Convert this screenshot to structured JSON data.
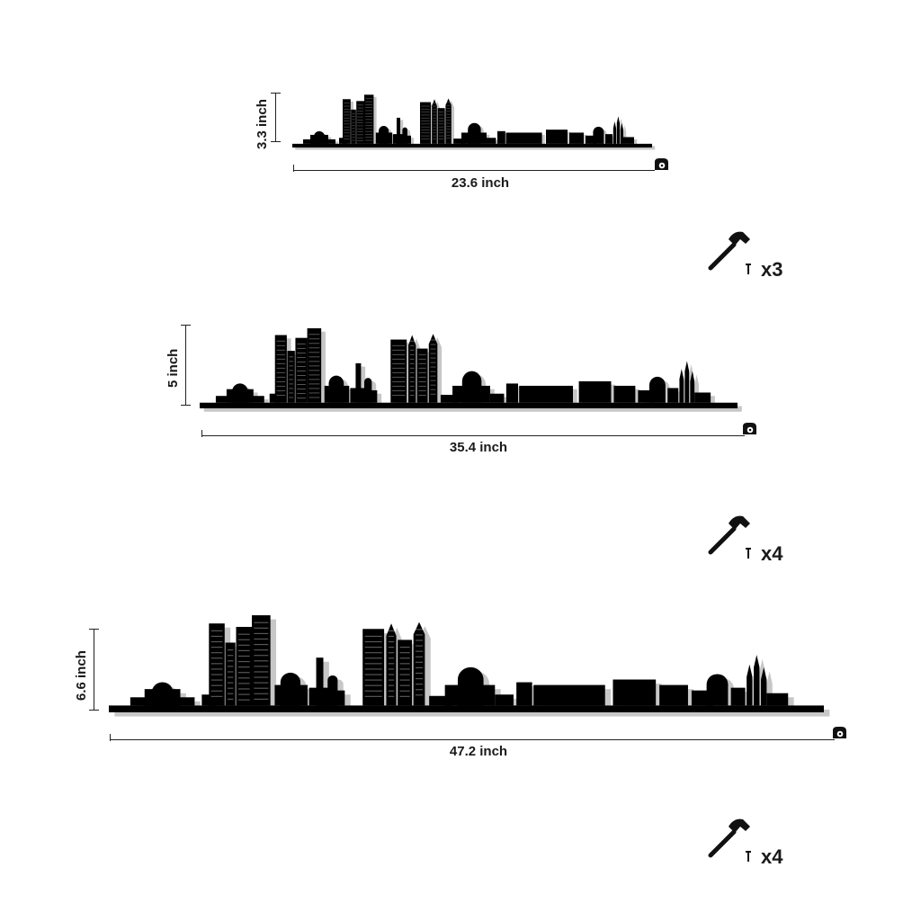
{
  "sizes": [
    {
      "height_label": "3.3 inch",
      "width_label": "23.6 inch",
      "nail_count": "x3"
    },
    {
      "height_label": "5 inch",
      "width_label": "35.4 inch",
      "nail_count": "x4"
    },
    {
      "height_label": "6.6 inch",
      "width_label": "47.2 inch",
      "nail_count": "x4"
    }
  ],
  "icons": {
    "tape": "tape-measure-icon",
    "hammer": "hammer-icon",
    "nail": "nail-icon"
  },
  "colors": {
    "silhouette": "#000000",
    "shadow": "#9a9a9a",
    "text": "#1a1a1a"
  }
}
